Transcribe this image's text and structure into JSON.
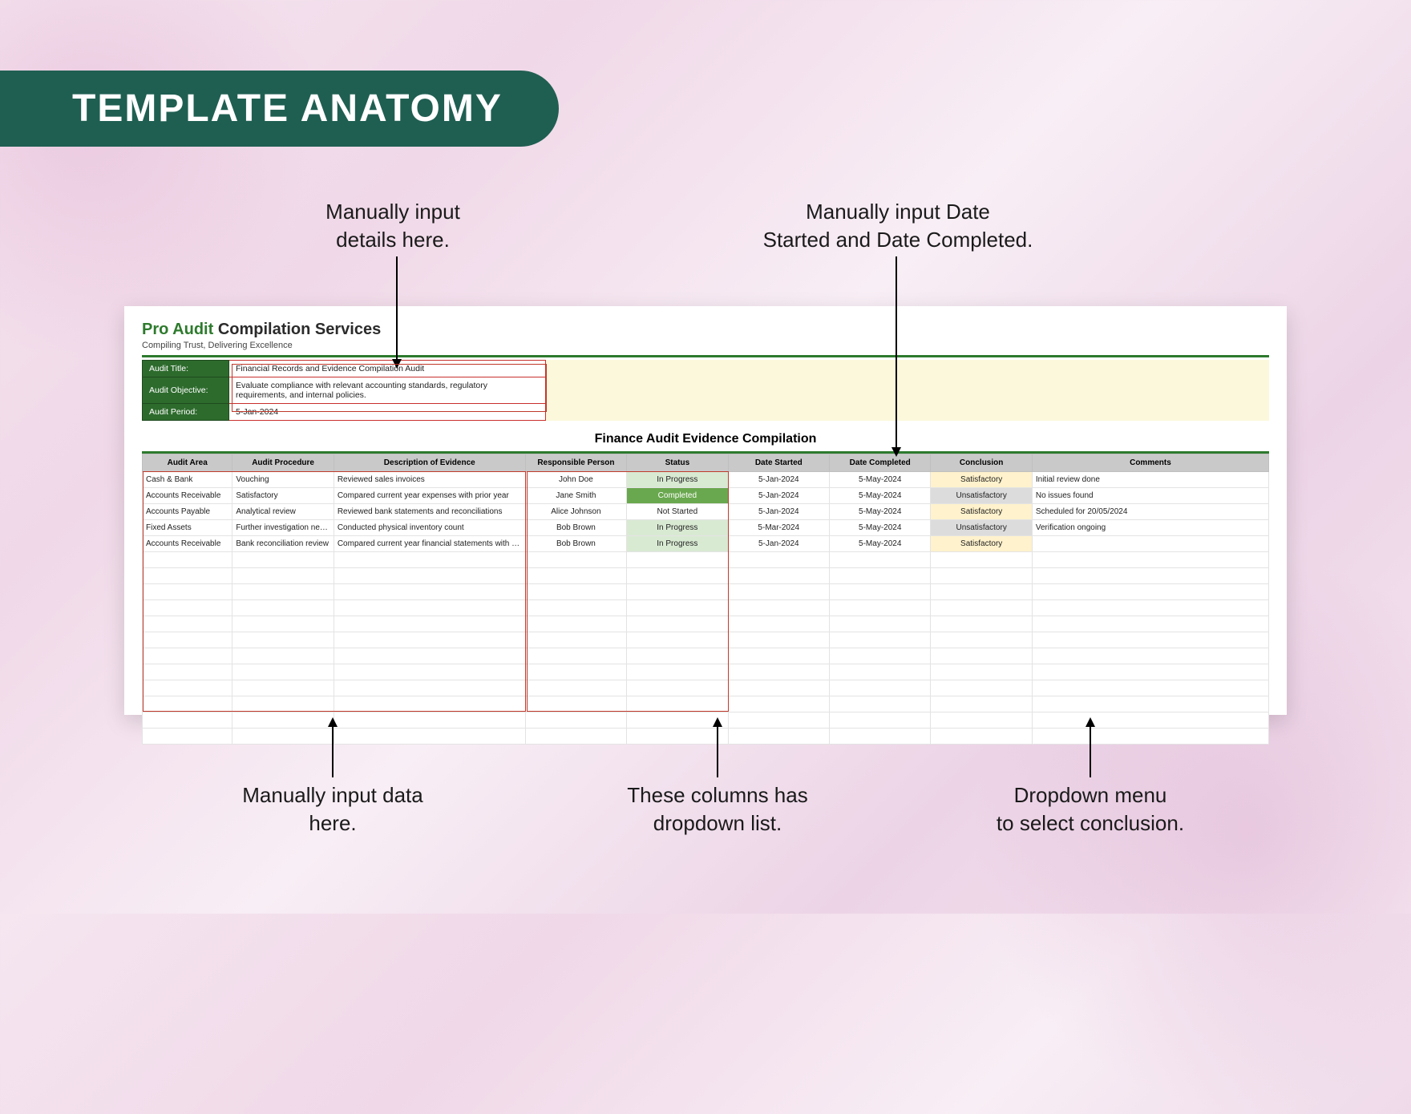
{
  "banner": {
    "title": "TEMPLATE ANATOMY"
  },
  "callouts": {
    "top_left": {
      "line1": "Manually input",
      "line2": "details here."
    },
    "top_right": {
      "line1": "Manually input Date",
      "line2": "Started and Date Completed."
    },
    "bottom_left": {
      "line1": "Manually input data",
      "line2": "here."
    },
    "bottom_mid": {
      "line1": "These columns has",
      "line2": "dropdown list."
    },
    "bottom_right": {
      "line1": "Dropdown menu",
      "line2": "to select conclusion."
    }
  },
  "brand": {
    "part1": "Pro Audit ",
    "part2": "Compilation Services",
    "tagline": "Compiling Trust, Delivering Excellence"
  },
  "meta": {
    "rows": [
      {
        "label": "Audit Title:",
        "value": "Financial Records and Evidence Compilation Audit"
      },
      {
        "label": "Audit Objective:",
        "value": "Evaluate compliance with relevant accounting standards, regulatory requirements, and internal policies."
      },
      {
        "label": "Audit Period:",
        "value": "5-Jan-2024"
      }
    ]
  },
  "section_title": "Finance Audit Evidence Compilation",
  "colors": {
    "banner_bg": "#1f5f52",
    "accent_green": "#2d7a2d",
    "header_grey": "#c9c9c9",
    "meta_bg": "#fcf8dc",
    "meta_label_bg": "#2d6b2d",
    "highlight_border": "#c0392b",
    "status_inprogress": "#d9ead3",
    "status_completed": "#6aa84f",
    "concl_sat": "#fff2cc",
    "concl_unsat": "#dcdcdc"
  },
  "table": {
    "columns": [
      "Audit Area",
      "Audit Procedure",
      "Description of Evidence",
      "Responsible Person",
      "Status",
      "Date Started",
      "Date Completed",
      "Conclusion",
      "Comments"
    ],
    "col_widths_pct": [
      8,
      9,
      17,
      9,
      9,
      9,
      9,
      9,
      21
    ],
    "rows": [
      {
        "area": "Cash & Bank",
        "proc": "Vouching",
        "desc": "Reviewed sales invoices",
        "person": "John Doe",
        "status": "In Progress",
        "status_class": "status-inprogress",
        "ds": "5-Jan-2024",
        "dc": "5-May-2024",
        "concl": "Satisfactory",
        "concl_class": "concl-sat",
        "comments": "Initial review done"
      },
      {
        "area": "Accounts Receivable",
        "proc": "Satisfactory",
        "desc": "Compared current year expenses with prior year",
        "person": "Jane Smith",
        "status": "Completed",
        "status_class": "status-completed",
        "ds": "5-Jan-2024",
        "dc": "5-May-2024",
        "concl": "Unsatisfactory",
        "concl_class": "concl-unsat",
        "comments": "No issues found"
      },
      {
        "area": "Accounts Payable",
        "proc": "Analytical review",
        "desc": "Reviewed bank statements and reconciliations",
        "person": "Alice Johnson",
        "status": "Not Started",
        "status_class": "status-notstarted",
        "ds": "5-Jan-2024",
        "dc": "5-May-2024",
        "concl": "Satisfactory",
        "concl_class": "concl-sat",
        "comments": "Scheduled for 20/05/2024"
      },
      {
        "area": "Fixed Assets",
        "proc": "Further investigation needed",
        "desc": "Conducted physical inventory count",
        "person": "Bob Brown",
        "status": "In Progress",
        "status_class": "status-inprogress",
        "ds": "5-Mar-2024",
        "dc": "5-May-2024",
        "concl": "Unsatisfactory",
        "concl_class": "concl-unsat",
        "comments": "Verification ongoing"
      },
      {
        "area": "Accounts Receivable",
        "proc": "Bank reconciliation review",
        "desc": "Compared current year financial statements with prior year",
        "person": "Bob Brown",
        "status": "In Progress",
        "status_class": "status-inprogress",
        "ds": "5-Jan-2024",
        "dc": "5-May-2024",
        "concl": "Satisfactory",
        "concl_class": "concl-sat",
        "comments": ""
      }
    ],
    "empty_rows": 12
  }
}
